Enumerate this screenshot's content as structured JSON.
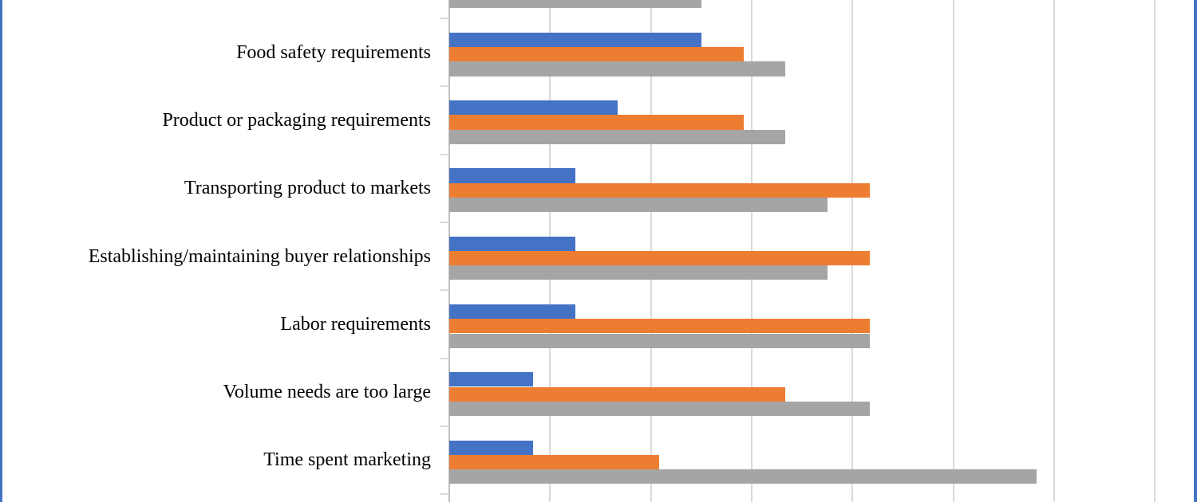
{
  "chart_data": {
    "type": "bar",
    "orientation": "horizontal",
    "title": "",
    "xlabel": "",
    "ylabel": "",
    "xlim": [
      0,
      70
    ],
    "gridline_step": 10,
    "grid": true,
    "legend_visible": false,
    "axis_tick_labels_visible": false,
    "series_order": [
      "blue",
      "orange",
      "gray"
    ],
    "series_colors": {
      "blue": "#4472C4",
      "orange": "#ED7D31",
      "gray": "#A5A5A5"
    },
    "categories": [
      {
        "label": "",
        "clipped_top": true,
        "values": {
          "blue": null,
          "orange": null,
          "gray": 25.0
        }
      },
      {
        "label": "Food safety requirements",
        "values": {
          "blue": 25.0,
          "orange": 29.2,
          "gray": 33.3
        }
      },
      {
        "label": "Product or packaging requirements",
        "values": {
          "blue": 16.7,
          "orange": 29.2,
          "gray": 33.3
        }
      },
      {
        "label": "Transporting product to markets",
        "values": {
          "blue": 12.5,
          "orange": 41.7,
          "gray": 37.5
        }
      },
      {
        "label": "Establishing/maintaining buyer relationships",
        "values": {
          "blue": 12.5,
          "orange": 41.7,
          "gray": 37.5
        }
      },
      {
        "label": "Labor requirements",
        "values": {
          "blue": 12.5,
          "orange": 41.7,
          "gray": 41.7
        }
      },
      {
        "label": "Volume needs are too large",
        "values": {
          "blue": 8.3,
          "orange": 33.3,
          "gray": 41.7
        }
      },
      {
        "label": "Time spent marketing",
        "values": {
          "blue": 8.3,
          "orange": 20.8,
          "gray": 58.3
        }
      }
    ]
  },
  "colors": {
    "page_border": "#4472C4",
    "gridline": "#D9D9D9",
    "axis_line": "#BFBFBF",
    "tick": "#D9D9D9",
    "label_text": "#000000",
    "background": "#FFFFFF"
  }
}
